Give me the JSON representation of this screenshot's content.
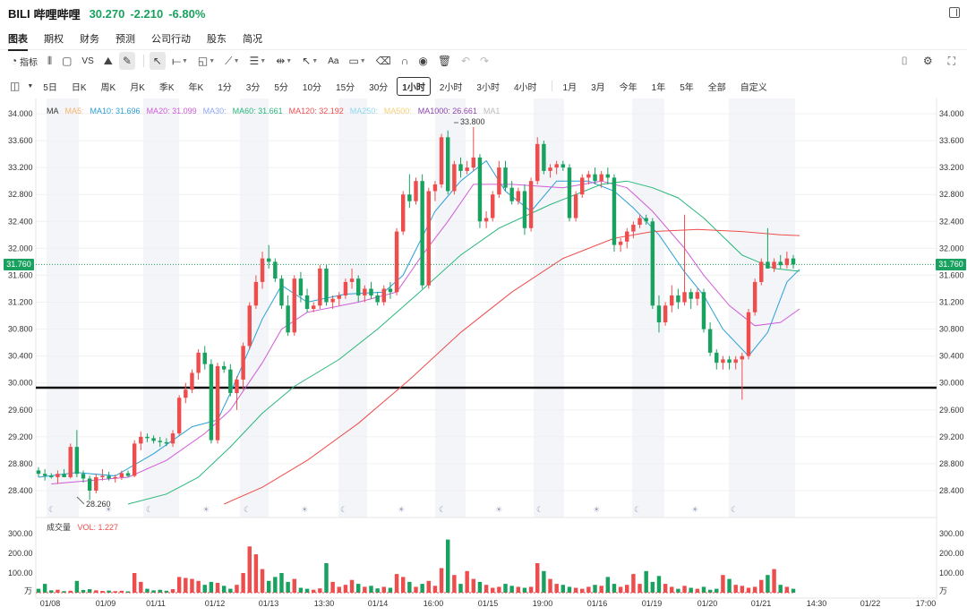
{
  "header": {
    "ticker": "BILI",
    "name": "哔哩哔哩",
    "price": "30.270",
    "change": "-2.210",
    "change_pct": "-6.80%"
  },
  "nav_tabs": [
    {
      "label": "图表",
      "active": true
    },
    {
      "label": "期权"
    },
    {
      "label": "财务"
    },
    {
      "label": "预测"
    },
    {
      "label": "公司行动"
    },
    {
      "label": "股东"
    },
    {
      "label": "简况"
    }
  ],
  "toolbar": {
    "indicator_label": "指标",
    "compare_label": "VS",
    "text_tool_label": "Aa",
    "icons": [
      "indicator-icon",
      "candle-type-icon",
      "rectangle-icon",
      "vs-icon",
      "pattern-icon",
      "brush-icon",
      "cursor-icon",
      "line-icon",
      "shape-icon",
      "fib-icon",
      "multi-line-icon",
      "range-icon",
      "arrow-icon",
      "text-icon",
      "comment-icon",
      "erase-icon",
      "magnet-icon",
      "eye-icon",
      "trash-icon",
      "undo-icon",
      "redo-icon",
      "camera-icon",
      "settings-icon",
      "fullscreen-icon"
    ]
  },
  "periods": {
    "intraday": [
      "5日",
      "日K",
      "周K",
      "月K",
      "季K",
      "年K",
      "1分",
      "3分",
      "5分",
      "10分",
      "15分",
      "30分",
      "1小时",
      "2小时",
      "3小时",
      "4小时"
    ],
    "active": "1小时",
    "ranges": [
      "1月",
      "3月",
      "今年",
      "1年",
      "5年",
      "全部",
      "自定义"
    ]
  },
  "legend": {
    "title": "MA",
    "items": [
      {
        "label": "MA5:",
        "color": "#f6b26b"
      },
      {
        "label": "MA10: 31.696",
        "color": "#2a9fd6"
      },
      {
        "label": "MA20: 31.099",
        "color": "#d05bd8"
      },
      {
        "label": "MA30:",
        "color": "#8fa7f0"
      },
      {
        "label": "MA60: 31.661",
        "color": "#29b77a"
      },
      {
        "label": "MA120: 32.192",
        "color": "#ee4d4d"
      },
      {
        "label": "MA250:",
        "color": "#8ed8f2"
      },
      {
        "label": "MA500:",
        "color": "#f5cf7a"
      },
      {
        "label": "MA1000: 26.661",
        "color": "#8e44ad"
      },
      {
        "label": "MA1",
        "color": "#bbbbbb"
      }
    ]
  },
  "volume_legend": {
    "title": "成交量",
    "vol_label": "VOL: 1.227",
    "vol_color": "#ee4d4d"
  },
  "price_badge": "31.760",
  "chart_data": {
    "type": "candlestick",
    "y_ticks": [
      "34.000",
      "33.600",
      "33.200",
      "32.800",
      "32.400",
      "32.000",
      "31.600",
      "31.200",
      "30.800",
      "30.400",
      "30.000",
      "29.600",
      "29.200",
      "28.800",
      "28.400"
    ],
    "ylim": [
      28.1,
      34.1
    ],
    "vol_ticks": [
      "300.00",
      "200.00",
      "100.00"
    ],
    "vol_unit": "万",
    "vol_ylim": [
      0,
      320
    ],
    "x_ticks": [
      "01/08",
      "01/09",
      "01/11",
      "01/12",
      "01/13",
      "13:30",
      "01/14",
      "16:00",
      "01/15",
      "19:00",
      "01/16",
      "01/19",
      "01/20",
      "01/21",
      "14:30",
      "01/22",
      "17:00"
    ],
    "high_annotation": "33.800",
    "low_annotation": "28.260",
    "support_line": 29.93,
    "last_price": 31.76,
    "candles": [
      [
        28.7,
        28.75,
        28.6,
        28.65
      ],
      [
        28.65,
        28.72,
        28.55,
        28.62
      ],
      [
        28.62,
        28.66,
        28.58,
        28.6
      ],
      [
        28.6,
        28.7,
        28.5,
        28.65
      ],
      [
        28.65,
        28.72,
        28.6,
        28.6
      ],
      [
        28.6,
        29.1,
        28.58,
        29.05
      ],
      [
        29.05,
        29.3,
        28.6,
        28.65
      ],
      [
        28.65,
        28.7,
        28.52,
        28.58
      ],
      [
        28.58,
        28.62,
        28.26,
        28.4
      ],
      [
        28.4,
        28.65,
        28.36,
        28.6
      ],
      [
        28.6,
        28.72,
        28.55,
        28.62
      ],
      [
        28.62,
        28.68,
        28.55,
        28.58
      ],
      [
        28.58,
        28.64,
        28.52,
        28.6
      ],
      [
        28.6,
        28.7,
        28.56,
        28.66
      ],
      [
        28.66,
        28.7,
        28.6,
        28.62
      ],
      [
        28.62,
        29.15,
        28.6,
        29.1
      ],
      [
        29.1,
        29.28,
        29.0,
        29.2
      ],
      [
        29.2,
        29.25,
        29.12,
        29.18
      ],
      [
        29.18,
        29.22,
        29.1,
        29.14
      ],
      [
        29.14,
        29.2,
        29.05,
        29.12
      ],
      [
        29.12,
        29.18,
        29.06,
        29.1
      ],
      [
        29.1,
        29.3,
        29.05,
        29.25
      ],
      [
        29.25,
        29.82,
        29.22,
        29.78
      ],
      [
        29.78,
        30.0,
        29.7,
        29.9
      ],
      [
        29.9,
        30.2,
        29.85,
        30.15
      ],
      [
        30.15,
        30.5,
        30.05,
        30.45
      ],
      [
        30.45,
        30.55,
        30.2,
        30.28
      ],
      [
        30.28,
        30.35,
        29.1,
        29.15
      ],
      [
        29.15,
        30.3,
        29.1,
        30.25
      ],
      [
        30.25,
        30.32,
        30.15,
        30.2
      ],
      [
        30.2,
        30.28,
        29.8,
        29.85
      ],
      [
        29.85,
        30.1,
        29.6,
        30.05
      ],
      [
        30.05,
        30.6,
        29.9,
        30.55
      ],
      [
        30.55,
        31.2,
        30.5,
        31.15
      ],
      [
        31.15,
        31.6,
        31.1,
        31.5
      ],
      [
        31.5,
        31.95,
        31.4,
        31.85
      ],
      [
        31.85,
        32.05,
        31.7,
        31.8
      ],
      [
        31.8,
        31.85,
        31.5,
        31.55
      ],
      [
        31.55,
        31.6,
        31.1,
        31.15
      ],
      [
        31.15,
        31.3,
        30.7,
        30.75
      ],
      [
        30.75,
        31.6,
        30.7,
        31.55
      ],
      [
        31.55,
        31.65,
        31.2,
        31.3
      ],
      [
        31.3,
        31.4,
        31.05,
        31.1
      ],
      [
        31.1,
        31.2,
        31.05,
        31.15
      ],
      [
        31.15,
        31.75,
        31.1,
        31.7
      ],
      [
        31.7,
        31.75,
        31.15,
        31.2
      ],
      [
        31.2,
        31.3,
        31.1,
        31.25
      ],
      [
        31.25,
        31.35,
        31.15,
        31.3
      ],
      [
        31.3,
        31.55,
        31.25,
        31.5
      ],
      [
        31.5,
        31.7,
        31.4,
        31.55
      ],
      [
        31.55,
        31.6,
        31.2,
        31.3
      ],
      [
        31.3,
        31.45,
        31.2,
        31.4
      ],
      [
        31.4,
        31.5,
        31.25,
        31.3
      ],
      [
        31.3,
        31.35,
        31.15,
        31.2
      ],
      [
        31.2,
        31.45,
        31.15,
        31.4
      ],
      [
        31.4,
        31.5,
        31.25,
        31.35
      ],
      [
        31.35,
        32.3,
        31.3,
        32.25
      ],
      [
        32.25,
        32.85,
        32.2,
        32.8
      ],
      [
        32.8,
        33.1,
        32.6,
        32.7
      ],
      [
        32.7,
        33.05,
        32.65,
        33.0
      ],
      [
        33.0,
        33.1,
        31.4,
        31.45
      ],
      [
        31.45,
        32.9,
        31.4,
        32.85
      ],
      [
        32.85,
        33.0,
        32.7,
        32.95
      ],
      [
        32.95,
        33.7,
        32.9,
        33.65
      ],
      [
        33.65,
        33.75,
        32.8,
        32.85
      ],
      [
        32.85,
        33.3,
        32.8,
        33.25
      ],
      [
        33.25,
        33.35,
        33.05,
        33.15
      ],
      [
        33.15,
        33.3,
        33.1,
        33.2
      ],
      [
        33.2,
        33.8,
        33.15,
        33.35
      ],
      [
        33.35,
        33.4,
        32.3,
        32.4
      ],
      [
        32.4,
        32.55,
        32.3,
        32.45
      ],
      [
        32.45,
        32.85,
        32.4,
        32.8
      ],
      [
        32.8,
        33.3,
        32.75,
        33.2
      ],
      [
        33.2,
        33.3,
        32.85,
        32.9
      ],
      [
        32.9,
        33.0,
        32.65,
        32.7
      ],
      [
        32.7,
        32.9,
        32.65,
        32.85
      ],
      [
        32.85,
        32.95,
        32.2,
        32.3
      ],
      [
        32.3,
        33.05,
        32.25,
        33.0
      ],
      [
        33.0,
        33.65,
        32.95,
        33.55
      ],
      [
        33.55,
        33.6,
        33.1,
        33.15
      ],
      [
        33.15,
        33.25,
        33.05,
        33.2
      ],
      [
        33.2,
        33.3,
        33.1,
        33.25
      ],
      [
        33.25,
        33.3,
        33.15,
        33.2
      ],
      [
        33.2,
        33.25,
        32.4,
        32.45
      ],
      [
        32.45,
        32.85,
        32.4,
        32.8
      ],
      [
        32.8,
        33.1,
        32.75,
        33.05
      ],
      [
        33.05,
        33.15,
        32.95,
        33.1
      ],
      [
        33.1,
        33.2,
        32.95,
        33.0
      ],
      [
        33.0,
        33.15,
        32.9,
        33.1
      ],
      [
        33.1,
        33.2,
        32.95,
        33.05
      ],
      [
        33.05,
        33.1,
        31.95,
        32.05
      ],
      [
        32.05,
        32.15,
        31.95,
        32.1
      ],
      [
        32.1,
        32.3,
        32.0,
        32.25
      ],
      [
        32.25,
        32.4,
        32.15,
        32.35
      ],
      [
        32.35,
        32.5,
        32.3,
        32.45
      ],
      [
        32.45,
        32.5,
        32.35,
        32.4
      ],
      [
        32.4,
        32.45,
        31.1,
        31.15
      ],
      [
        31.15,
        31.3,
        30.75,
        30.9
      ],
      [
        30.9,
        31.2,
        30.85,
        31.15
      ],
      [
        31.15,
        31.45,
        31.05,
        31.3
      ],
      [
        31.3,
        31.4,
        31.1,
        31.2
      ],
      [
        31.2,
        32.5,
        31.15,
        31.35
      ],
      [
        31.35,
        31.4,
        31.1,
        31.25
      ],
      [
        31.25,
        31.4,
        31.15,
        31.35
      ],
      [
        31.35,
        31.4,
        30.75,
        30.8
      ],
      [
        30.8,
        30.9,
        30.4,
        30.45
      ],
      [
        30.45,
        30.5,
        30.2,
        30.3
      ],
      [
        30.3,
        30.4,
        30.2,
        30.35
      ],
      [
        30.35,
        30.4,
        30.2,
        30.3
      ],
      [
        30.3,
        30.4,
        30.2,
        30.35
      ],
      [
        30.35,
        30.45,
        29.75,
        30.4
      ],
      [
        30.4,
        31.1,
        30.35,
        31.05
      ],
      [
        31.05,
        31.55,
        31.0,
        31.5
      ],
      [
        31.5,
        31.85,
        31.45,
        31.8
      ],
      [
        31.8,
        32.3,
        31.7,
        31.7
      ],
      [
        31.7,
        31.85,
        31.65,
        31.8
      ],
      [
        31.8,
        31.9,
        31.7,
        31.75
      ],
      [
        31.75,
        31.95,
        31.7,
        31.85
      ],
      [
        31.85,
        31.9,
        31.7,
        31.76
      ]
    ],
    "volumes": [
      20,
      45,
      12,
      15,
      8,
      10,
      60,
      14,
      18,
      12,
      9,
      11,
      8,
      10,
      7,
      100,
      55,
      20,
      12,
      15,
      10,
      18,
      80,
      75,
      70,
      60,
      40,
      55,
      50,
      35,
      20,
      40,
      100,
      235,
      195,
      120,
      60,
      80,
      100,
      55,
      70,
      25,
      20,
      15,
      22,
      150,
      55,
      30,
      40,
      65,
      45,
      30,
      35,
      22,
      30,
      25,
      95,
      80,
      55,
      30,
      45,
      60,
      35,
      125,
      270,
      90,
      45,
      110,
      70,
      55,
      40,
      25,
      30,
      45,
      35,
      30,
      25,
      30,
      150,
      110,
      70,
      45,
      40,
      30,
      25,
      20,
      30,
      40,
      35,
      80,
      45,
      30,
      40,
      95,
      45,
      110,
      55,
      85,
      45,
      30,
      20,
      35,
      25,
      20,
      30,
      15,
      20,
      90,
      70,
      40,
      35,
      25,
      30,
      65,
      90,
      120,
      40,
      30,
      20
    ],
    "ma_series": {
      "MA10": {
        "color": "#2a9fd6",
        "points": [
          [
            0,
            28.6
          ],
          [
            6,
            28.67
          ],
          [
            12,
            28.62
          ],
          [
            18,
            28.95
          ],
          [
            24,
            29.35
          ],
          [
            28,
            29.45
          ],
          [
            30,
            29.85
          ],
          [
            35,
            30.95
          ],
          [
            38,
            31.45
          ],
          [
            42,
            31.2
          ],
          [
            48,
            31.32
          ],
          [
            54,
            31.35
          ],
          [
            57,
            31.6
          ],
          [
            62,
            32.55
          ],
          [
            66,
            33.0
          ],
          [
            70,
            33.3
          ],
          [
            73,
            32.85
          ],
          [
            77,
            32.55
          ],
          [
            81,
            33.0
          ],
          [
            86,
            33.0
          ],
          [
            90,
            32.85
          ],
          [
            93,
            32.6
          ],
          [
            97,
            32.2
          ],
          [
            101,
            31.65
          ],
          [
            104,
            31.3
          ],
          [
            107,
            30.8
          ],
          [
            111,
            30.4
          ],
          [
            114,
            30.75
          ],
          [
            117,
            31.5
          ],
          [
            119,
            31.69
          ]
        ]
      },
      "MA20": {
        "color": "#d05bd8",
        "points": [
          [
            2,
            28.5
          ],
          [
            8,
            28.55
          ],
          [
            14,
            28.6
          ],
          [
            20,
            28.85
          ],
          [
            26,
            29.25
          ],
          [
            30,
            29.6
          ],
          [
            35,
            30.3
          ],
          [
            38,
            30.8
          ],
          [
            42,
            31.05
          ],
          [
            50,
            31.2
          ],
          [
            56,
            31.35
          ],
          [
            60,
            31.9
          ],
          [
            64,
            32.4
          ],
          [
            68,
            32.95
          ],
          [
            74,
            32.95
          ],
          [
            82,
            32.9
          ],
          [
            88,
            33.0
          ],
          [
            92,
            32.9
          ],
          [
            96,
            32.55
          ],
          [
            101,
            32.0
          ],
          [
            104,
            31.6
          ],
          [
            108,
            31.15
          ],
          [
            112,
            30.85
          ],
          [
            116,
            30.9
          ],
          [
            119,
            31.1
          ]
        ]
      },
      "MA60": {
        "color": "#29b77a",
        "points": [
          [
            14,
            28.2
          ],
          [
            20,
            28.35
          ],
          [
            25,
            28.6
          ],
          [
            30,
            29.05
          ],
          [
            35,
            29.55
          ],
          [
            40,
            29.95
          ],
          [
            47,
            30.35
          ],
          [
            53,
            30.8
          ],
          [
            59,
            31.3
          ],
          [
            66,
            31.9
          ],
          [
            72,
            32.3
          ],
          [
            80,
            32.65
          ],
          [
            88,
            32.95
          ],
          [
            92,
            33.0
          ],
          [
            96,
            32.9
          ],
          [
            100,
            32.75
          ],
          [
            104,
            32.45
          ],
          [
            110,
            31.9
          ],
          [
            115,
            31.7
          ],
          [
            119,
            31.66
          ]
        ]
      },
      "MA120": {
        "color": "#ee4d4d",
        "points": [
          [
            29,
            28.2
          ],
          [
            35,
            28.45
          ],
          [
            42,
            28.85
          ],
          [
            50,
            29.4
          ],
          [
            58,
            30.05
          ],
          [
            66,
            30.75
          ],
          [
            74,
            31.35
          ],
          [
            82,
            31.85
          ],
          [
            90,
            32.15
          ],
          [
            96,
            32.25
          ],
          [
            103,
            32.28
          ],
          [
            110,
            32.25
          ],
          [
            116,
            32.2
          ],
          [
            119,
            32.19
          ]
        ]
      }
    }
  }
}
